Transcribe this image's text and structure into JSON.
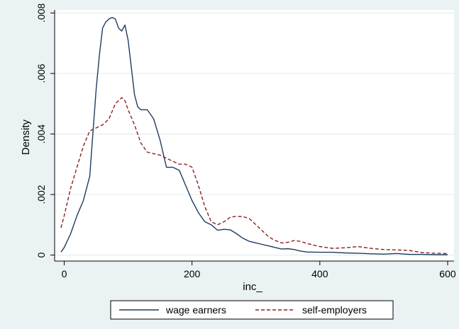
{
  "chart_data": {
    "type": "line",
    "xlabel": "inc_",
    "ylabel": "Density",
    "xlim": [
      -15,
      610
    ],
    "ylim": [
      -0.0002,
      0.0081
    ],
    "x_ticks": [
      0,
      200,
      400,
      600
    ],
    "x_tick_labels": [
      "0",
      "200",
      "400",
      "600"
    ],
    "y_ticks": [
      0,
      0.002,
      0.004,
      0.006,
      0.008
    ],
    "y_tick_labels": [
      "0",
      ".002",
      ".004",
      ".006",
      ".008"
    ],
    "grid": "y",
    "legend_position": "bottom",
    "series": [
      {
        "name": "wage earners",
        "color": "#1f3b5c",
        "style": "solid",
        "x": [
          -5,
          0,
          10,
          20,
          30,
          40,
          50,
          55,
          60,
          65,
          70,
          75,
          80,
          85,
          90,
          95,
          100,
          105,
          110,
          115,
          120,
          130,
          140,
          150,
          160,
          170,
          180,
          190,
          200,
          210,
          220,
          230,
          240,
          250,
          260,
          270,
          280,
          290,
          300,
          310,
          320,
          330,
          340,
          350,
          360,
          370,
          380,
          400,
          420,
          440,
          460,
          480,
          500,
          520,
          540,
          560,
          580,
          600
        ],
        "values": [
          0.0001,
          0.00025,
          0.0007,
          0.0013,
          0.0018,
          0.0026,
          0.0055,
          0.0066,
          0.0075,
          0.0077,
          0.0078,
          0.00785,
          0.0078,
          0.0075,
          0.0074,
          0.0076,
          0.0071,
          0.0062,
          0.0053,
          0.0049,
          0.0048,
          0.0048,
          0.0045,
          0.0038,
          0.0029,
          0.0029,
          0.0028,
          0.0023,
          0.0018,
          0.0014,
          0.0011,
          0.001,
          0.00082,
          0.00085,
          0.00083,
          0.0007,
          0.00055,
          0.00045,
          0.0004,
          0.00035,
          0.0003,
          0.00025,
          0.0002,
          0.00021,
          0.00018,
          0.00013,
          0.0001,
          9e-05,
          9e-05,
          7e-05,
          6e-05,
          4e-05,
          3e-05,
          5e-05,
          2e-05,
          2e-05,
          1e-05,
          1e-05
        ]
      },
      {
        "name": "self-employers",
        "color": "#8b1f1f",
        "style": "dashed",
        "x": [
          -5,
          0,
          10,
          20,
          30,
          40,
          50,
          60,
          70,
          80,
          85,
          90,
          95,
          100,
          110,
          120,
          130,
          140,
          150,
          160,
          170,
          180,
          190,
          200,
          210,
          220,
          230,
          240,
          250,
          260,
          270,
          280,
          290,
          300,
          310,
          320,
          330,
          340,
          350,
          360,
          370,
          380,
          400,
          420,
          440,
          460,
          480,
          500,
          520,
          540,
          560,
          580,
          600
        ],
        "values": [
          0.0009,
          0.0013,
          0.0022,
          0.0029,
          0.0036,
          0.0041,
          0.0042,
          0.0043,
          0.0045,
          0.005,
          0.0051,
          0.0052,
          0.0051,
          0.0048,
          0.0043,
          0.0037,
          0.0034,
          0.00335,
          0.0033,
          0.0032,
          0.0031,
          0.003,
          0.003,
          0.0029,
          0.0023,
          0.0016,
          0.0011,
          0.001,
          0.0011,
          0.00125,
          0.00128,
          0.00127,
          0.0012,
          0.001,
          0.0008,
          0.0006,
          0.00048,
          0.0004,
          0.00042,
          0.00048,
          0.00045,
          0.00038,
          0.00028,
          0.00022,
          0.00024,
          0.00028,
          0.00022,
          0.00018,
          0.00017,
          0.00015,
          8e-05,
          6e-05,
          5e-05
        ]
      }
    ]
  }
}
